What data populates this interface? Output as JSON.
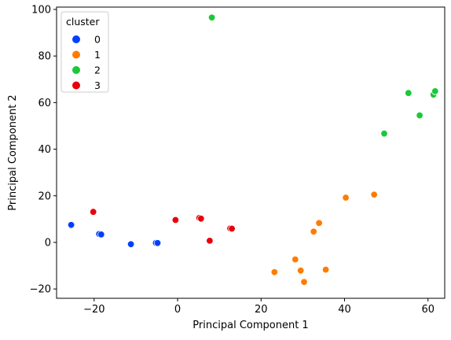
{
  "chart_data": {
    "type": "scatter",
    "xlabel": "Principal Component 1",
    "ylabel": "Principal Component 2",
    "xlim": [
      -29,
      64
    ],
    "ylim": [
      -24,
      101
    ],
    "xticks": [
      -20,
      0,
      20,
      40,
      60
    ],
    "yticks": [
      -20,
      0,
      20,
      40,
      60,
      80,
      100
    ],
    "tick_labels_x": [
      "−20",
      "0",
      "20",
      "40",
      "60"
    ],
    "tick_labels_y": [
      "−20",
      "0",
      "20",
      "40",
      "60",
      "80",
      "100"
    ],
    "grid": false,
    "legend": {
      "title": "cluster",
      "placement": "top-left",
      "entries": [
        "0",
        "1",
        "2",
        "3"
      ]
    },
    "series": [
      {
        "name": "0",
        "color": "#023eff",
        "points": [
          [
            -25.5,
            7.5
          ],
          [
            -18.8,
            3.6
          ],
          [
            -18.3,
            3.4
          ],
          [
            -11.2,
            -0.8
          ],
          [
            -5.2,
            -0.2
          ],
          [
            -4.8,
            -0.3
          ]
        ]
      },
      {
        "name": "1",
        "color": "#ff7c00",
        "points": [
          [
            23.2,
            -12.8
          ],
          [
            28.2,
            -7.3
          ],
          [
            29.5,
            -12.1
          ],
          [
            30.3,
            -17.0
          ],
          [
            32.6,
            4.6
          ],
          [
            33.9,
            8.3
          ],
          [
            35.5,
            -11.7
          ],
          [
            40.3,
            19.2
          ],
          [
            47.1,
            20.5
          ]
        ]
      },
      {
        "name": "2",
        "color": "#1ac938",
        "points": [
          [
            8.2,
            96.5
          ],
          [
            49.5,
            46.7
          ],
          [
            55.3,
            64.1
          ],
          [
            58.0,
            54.5
          ],
          [
            61.3,
            63.4
          ],
          [
            61.7,
            64.9
          ]
        ]
      },
      {
        "name": "3",
        "color": "#e8000b",
        "points": [
          [
            -20.2,
            13.1
          ],
          [
            -0.5,
            9.6
          ],
          [
            5.2,
            10.5
          ],
          [
            5.6,
            10.2
          ],
          [
            7.7,
            0.7
          ],
          [
            12.6,
            6.0
          ],
          [
            13.0,
            5.9
          ]
        ]
      }
    ]
  }
}
